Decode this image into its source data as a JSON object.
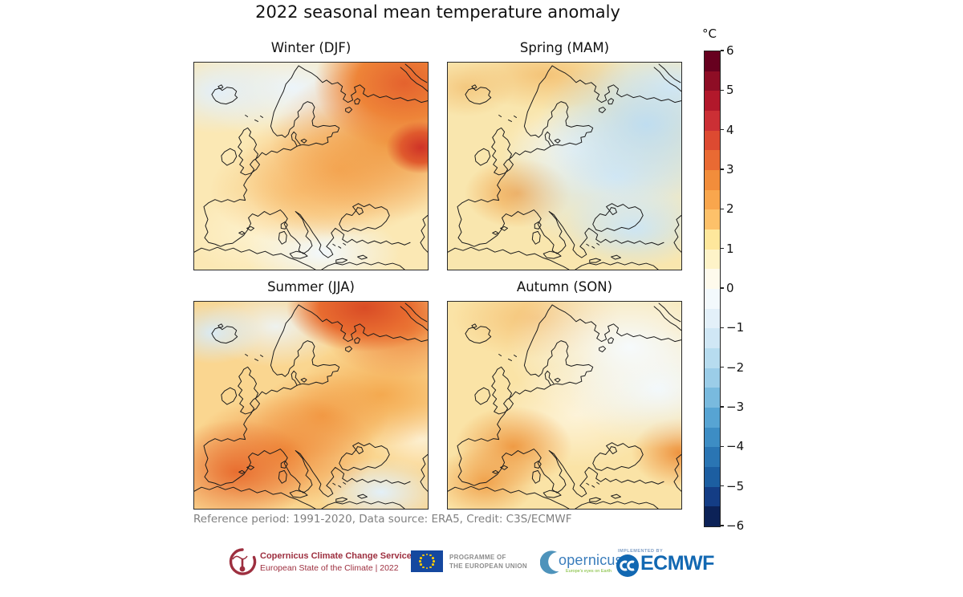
{
  "figure": {
    "title": "2022 seasonal mean temperature anomaly",
    "panels": [
      {
        "id": "winter",
        "label": "Winter (DJF)"
      },
      {
        "id": "spring",
        "label": "Spring (MAM)"
      },
      {
        "id": "summer",
        "label": "Summer (JJA)"
      },
      {
        "id": "autumn",
        "label": "Autumn (SON)"
      }
    ],
    "colorbar": {
      "unit_label": "°C",
      "tick_labels": [
        "6",
        "5",
        "4",
        "3",
        "2",
        "1",
        "0",
        "−1",
        "−2",
        "−3",
        "−4",
        "−5",
        "−6"
      ],
      "segment_colors_top_to_bottom": [
        "#67001f",
        "#8e0d25",
        "#b2182b",
        "#cb2f35",
        "#dd4a31",
        "#e96a33",
        "#f28d3b",
        "#f9a64d",
        "#fdc16a",
        "#fee79c",
        "#fef3c8",
        "#fefaec",
        "#f3f9fc",
        "#e3f0f9",
        "#d0e7f5",
        "#b7dcef",
        "#9bcde8",
        "#79bade",
        "#57a4d3",
        "#3d8dc4",
        "#2a75b3",
        "#1c5ea1",
        "#143d85",
        "#0c2257"
      ]
    },
    "footnote": "Reference period: 1991-2020, Data source: ERA5, Credit: C3S/ECMWF"
  },
  "chart_data": {
    "type": "heatmap",
    "title": "2022 seasonal mean temperature anomaly",
    "region": "Europe",
    "unit": "°C",
    "colorbar_range": [
      -6,
      6
    ],
    "colorbar_tick_interval": 1,
    "colorbar_segment_interval": 0.5,
    "legend_position": "right",
    "panels": [
      {
        "season": "Winter (DJF)",
        "approx_regional_anomalies_degC": {
          "iceland": -0.5,
          "british_isles": 1.0,
          "scandinavia": 0.5,
          "western_europe": 1.0,
          "central_europe": 1.5,
          "iberia": 1.0,
          "mediterranean": 0.5,
          "eastern_europe": 2.5,
          "northwest_russia": 3.0,
          "urals_east_hotspot": 5.0
        }
      },
      {
        "season": "Spring (MAM)",
        "approx_regional_anomalies_degC": {
          "iceland": 1.0,
          "british_isles": 0.5,
          "scandinavia": 1.0,
          "france": 1.5,
          "iberia": 1.0,
          "central_europe": 0.5,
          "eastern_europe": -1.0,
          "western_russia": -1.5,
          "black_sea": -1.0
        }
      },
      {
        "season": "Summer (JJA)",
        "approx_regional_anomalies_degC": {
          "iceland": -0.5,
          "british_isles": 1.0,
          "scandinavia": 1.0,
          "france": 2.5,
          "iberia": 3.0,
          "central_europe": 2.0,
          "eastern_europe": 1.5,
          "arctic_northeast_hotspot": 3.5,
          "turkey": -0.5
        }
      },
      {
        "season": "Autumn (SON)",
        "approx_regional_anomalies_degC": {
          "iceland": 1.0,
          "british_isles": 1.0,
          "scandinavia": 1.5,
          "france": 2.0,
          "iberia": 2.0,
          "central_europe": 1.5,
          "northeast_russia": 0.0,
          "caspian_region": 2.5
        }
      }
    ],
    "footnote": "Reference period: 1991-2020, Data source: ERA5, Credit: C3S/ECMWF"
  },
  "logos": {
    "c3s": {
      "line1": "Copernicus Climate Change Service",
      "line2": "European State of the Climate | 2022",
      "color": "#9d2f3f"
    },
    "eu": {
      "line1": "PROGRAMME OF",
      "line2": "THE EUROPEAN UNION",
      "flag_blue": "#15489f",
      "star_yellow": "#ffcc00"
    },
    "copernicus": {
      "wordmark": "opernicus",
      "tagline": "Europe's eyes on Earth",
      "blue": "#3a7dbc",
      "green": "#76b82a"
    },
    "ecmwf": {
      "caption": "IMPLEMENTED BY",
      "wordmark": "ECMWF",
      "blue": "#1268b2"
    }
  }
}
